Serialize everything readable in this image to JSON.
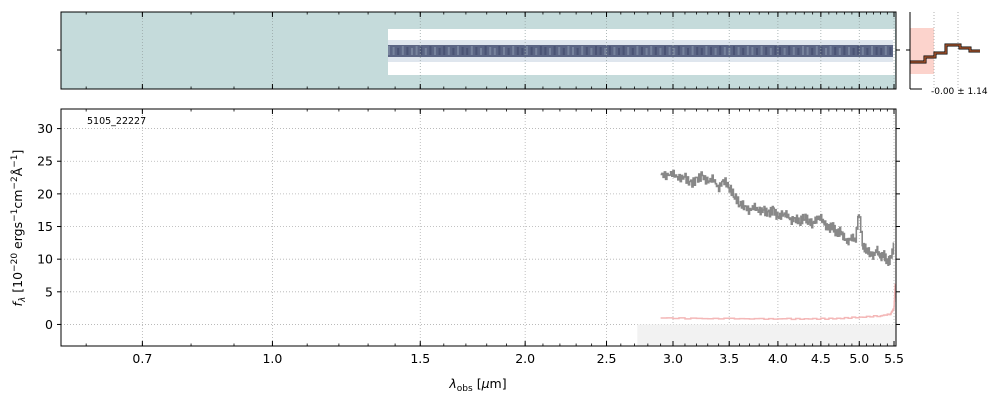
{
  "figure": {
    "object_label": "5105_22227",
    "profile_annotation": "-0.00 ± 1.14"
  },
  "chart_data": {
    "type": "line",
    "xlabel": "λobs [μm]",
    "ylabel": "fλ [10−20 ergs−1cm−2Å−1]",
    "xscale": "log",
    "xlim": [
      0.56,
      5.53
    ],
    "ylim": [
      -3.3,
      33
    ],
    "grid": true,
    "x_ticks": [
      0.7,
      1.0,
      1.5,
      2.0,
      2.5,
      3.0,
      3.5,
      4.0,
      4.5,
      5.0,
      5.5
    ],
    "x_tick_labels": [
      "0.7",
      "1.0",
      "1.5",
      "2.0",
      "2.5",
      "3.0",
      "3.5",
      "4.0",
      "4.5",
      "5.0",
      "5.5"
    ],
    "y_ticks": [
      0,
      5,
      10,
      15,
      20,
      25,
      30
    ],
    "y_tick_labels": [
      "0",
      "5",
      "10",
      "15",
      "20",
      "25",
      "30"
    ],
    "spectrum": {
      "color": "#888888",
      "x": [
        2.9,
        2.95,
        3.0,
        3.05,
        3.1,
        3.15,
        3.2,
        3.25,
        3.3,
        3.35,
        3.4,
        3.45,
        3.5,
        3.55,
        3.6,
        3.65,
        3.7,
        3.75,
        3.8,
        3.85,
        3.9,
        3.95,
        4.0,
        4.05,
        4.1,
        4.15,
        4.2,
        4.25,
        4.3,
        4.35,
        4.4,
        4.45,
        4.5,
        4.55,
        4.6,
        4.65,
        4.7,
        4.75,
        4.8,
        4.85,
        4.9,
        4.95,
        5.0,
        5.05,
        5.1,
        5.15,
        5.2,
        5.25,
        5.3,
        5.35,
        5.4,
        5.45,
        5.5
      ],
      "y": [
        23.0,
        22.8,
        23.2,
        22.3,
        22.6,
        21.5,
        22.1,
        22.8,
        21.8,
        22.4,
        20.8,
        22.2,
        21.0,
        19.8,
        18.5,
        18.2,
        17.4,
        18.1,
        17.3,
        17.5,
        16.9,
        17.6,
        16.4,
        16.8,
        16.9,
        15.9,
        16.3,
        15.7,
        16.5,
        15.9,
        15.4,
        16.2,
        16.4,
        15.3,
        14.6,
        15.2,
        13.8,
        14.3,
        13.2,
        12.6,
        13.5,
        12.8,
        17.5,
        12.0,
        11.5,
        11.0,
        10.5,
        11.5,
        10.2,
        10.8,
        9.5,
        10.0,
        12.0
      ]
    },
    "error": {
      "color": "#f4b7b7",
      "x": [
        2.9,
        3.2,
        3.5,
        3.8,
        4.1,
        4.4,
        4.7,
        5.0,
        5.3,
        5.45,
        5.5,
        5.52
      ],
      "y": [
        1.0,
        0.9,
        0.9,
        0.85,
        0.85,
        0.85,
        0.9,
        1.1,
        1.3,
        1.6,
        2.5,
        6.5
      ]
    },
    "zero_band": {
      "x": [
        2.72,
        5.53
      ],
      "y": [
        -3.3,
        0
      ]
    }
  }
}
